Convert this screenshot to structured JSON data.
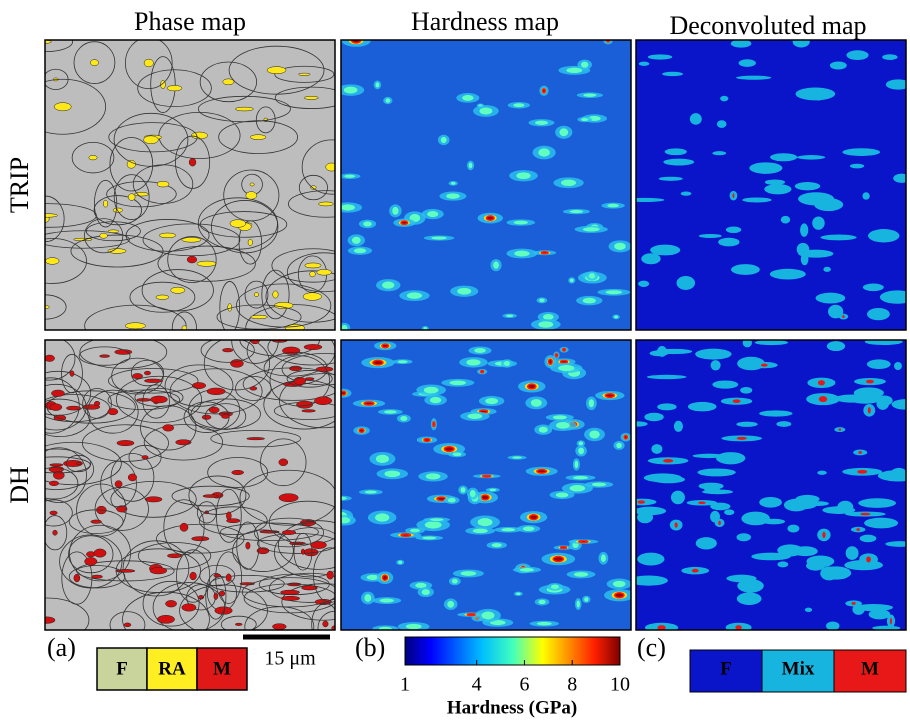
{
  "columns": [
    "Phase map",
    "Hardness map",
    "Deconvoluted map"
  ],
  "rows": [
    "TRIP",
    "DH"
  ],
  "panel_labels": [
    "(a)",
    "(b)",
    "(c)"
  ],
  "phase_legend": [
    {
      "label": "F",
      "color": "#c8d49c"
    },
    {
      "label": "RA",
      "color": "#ffee22"
    },
    {
      "label": "M",
      "color": "#e01818"
    }
  ],
  "scale_bar": "15 μm",
  "colorbar": {
    "lim": [
      1,
      10
    ],
    "ticks": [
      1,
      4,
      6,
      8,
      10
    ],
    "label": "Hardness (GPa)"
  },
  "deconvoluted_legend": [
    {
      "label": "F",
      "color": "#0a14c8"
    },
    {
      "label": "Mix",
      "color": "#18b4e0"
    },
    {
      "label": "M",
      "color": "#e81818"
    }
  ]
}
